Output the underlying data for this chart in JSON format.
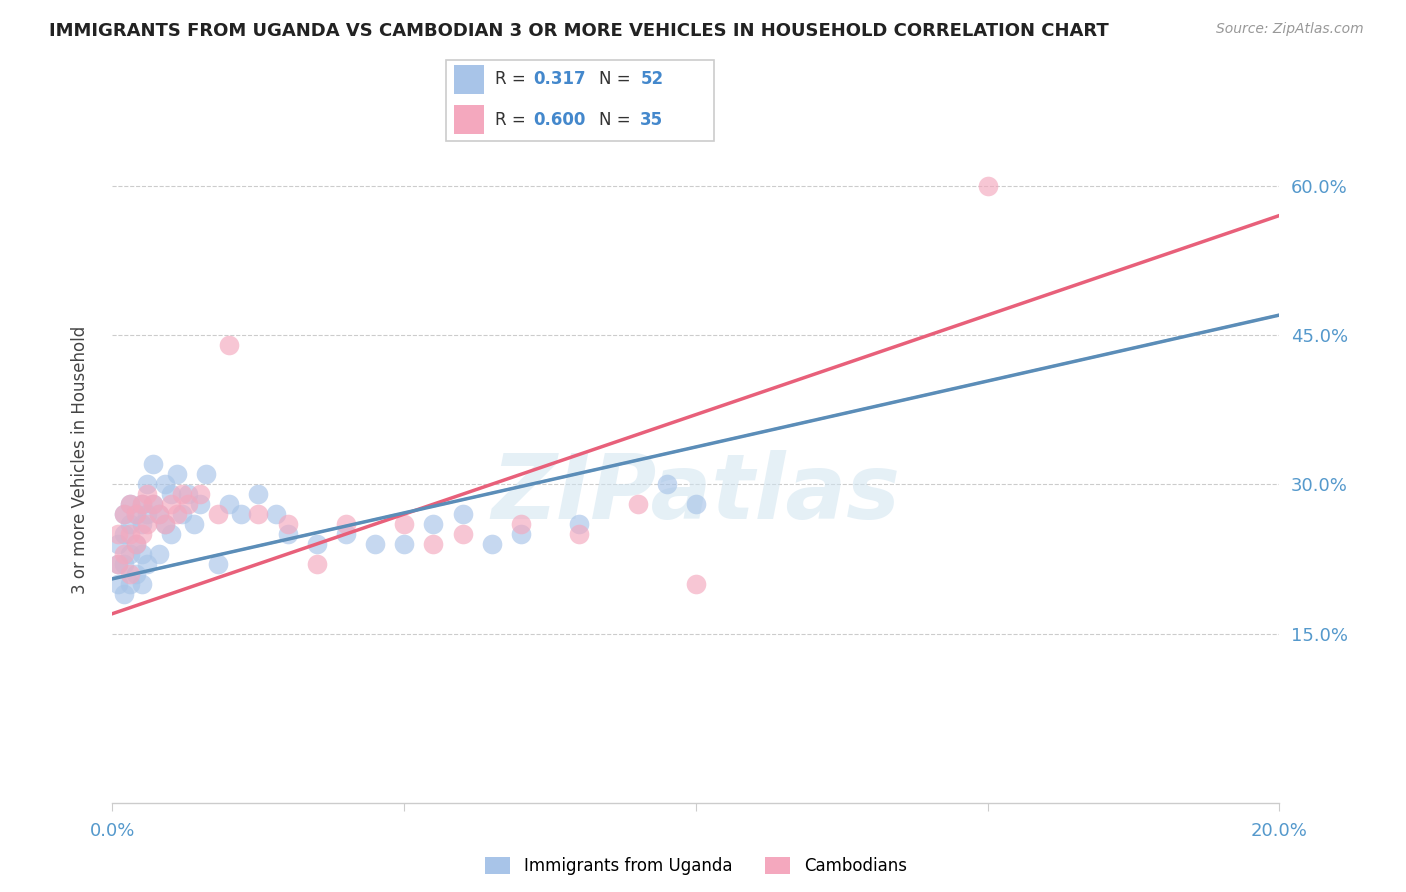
{
  "title": "IMMIGRANTS FROM UGANDA VS CAMBODIAN 3 OR MORE VEHICLES IN HOUSEHOLD CORRELATION CHART",
  "source": "Source: ZipAtlas.com",
  "ylabel": "3 or more Vehicles in Household",
  "x_min": 0.0,
  "x_max": 0.2,
  "y_min": -0.02,
  "y_max": 0.67,
  "x_ticks": [
    0.0,
    0.05,
    0.1,
    0.15,
    0.2
  ],
  "y_ticks": [
    0.15,
    0.3,
    0.45,
    0.6
  ],
  "y_tick_labels": [
    "15.0%",
    "30.0%",
    "45.0%",
    "60.0%"
  ],
  "r_uganda": 0.317,
  "n_uganda": 52,
  "r_cambodian": 0.6,
  "n_cambodian": 35,
  "uganda_color": "#a8c4e8",
  "cambodian_color": "#f4a8be",
  "uganda_line_color": "#5b8db8",
  "cambodian_line_color": "#e8607a",
  "watermark": "ZIPatlas",
  "uganda_x": [
    0.001,
    0.001,
    0.001,
    0.002,
    0.002,
    0.002,
    0.002,
    0.003,
    0.003,
    0.003,
    0.003,
    0.004,
    0.004,
    0.004,
    0.005,
    0.005,
    0.005,
    0.005,
    0.006,
    0.006,
    0.006,
    0.007,
    0.007,
    0.008,
    0.008,
    0.009,
    0.009,
    0.01,
    0.01,
    0.011,
    0.012,
    0.013,
    0.014,
    0.015,
    0.016,
    0.018,
    0.02,
    0.022,
    0.025,
    0.028,
    0.03,
    0.035,
    0.04,
    0.045,
    0.05,
    0.055,
    0.06,
    0.065,
    0.07,
    0.08,
    0.095,
    0.1
  ],
  "uganda_y": [
    0.24,
    0.22,
    0.2,
    0.27,
    0.25,
    0.22,
    0.19,
    0.28,
    0.26,
    0.23,
    0.2,
    0.27,
    0.24,
    0.21,
    0.28,
    0.26,
    0.23,
    0.2,
    0.3,
    0.27,
    0.22,
    0.32,
    0.28,
    0.27,
    0.23,
    0.3,
    0.26,
    0.29,
    0.25,
    0.31,
    0.27,
    0.29,
    0.26,
    0.28,
    0.31,
    0.22,
    0.28,
    0.27,
    0.29,
    0.27,
    0.25,
    0.24,
    0.25,
    0.24,
    0.24,
    0.26,
    0.27,
    0.24,
    0.25,
    0.26,
    0.3,
    0.28
  ],
  "cambodian_x": [
    0.001,
    0.001,
    0.002,
    0.002,
    0.003,
    0.003,
    0.003,
    0.004,
    0.004,
    0.005,
    0.005,
    0.006,
    0.006,
    0.007,
    0.008,
    0.009,
    0.01,
    0.011,
    0.012,
    0.013,
    0.015,
    0.018,
    0.02,
    0.025,
    0.03,
    0.035,
    0.04,
    0.05,
    0.055,
    0.06,
    0.07,
    0.08,
    0.09,
    0.1,
    0.15
  ],
  "cambodian_y": [
    0.25,
    0.22,
    0.27,
    0.23,
    0.28,
    0.25,
    0.21,
    0.27,
    0.24,
    0.28,
    0.25,
    0.29,
    0.26,
    0.28,
    0.27,
    0.26,
    0.28,
    0.27,
    0.29,
    0.28,
    0.29,
    0.27,
    0.44,
    0.27,
    0.26,
    0.22,
    0.26,
    0.26,
    0.24,
    0.25,
    0.26,
    0.25,
    0.28,
    0.2,
    0.6
  ],
  "uganda_trend_x0": 0.0,
  "uganda_trend_y0": 0.205,
  "uganda_trend_x1": 0.2,
  "uganda_trend_y1": 0.47,
  "cambodian_trend_x0": 0.0,
  "cambodian_trend_y0": 0.17,
  "cambodian_trend_x1": 0.2,
  "cambodian_trend_y1": 0.57
}
